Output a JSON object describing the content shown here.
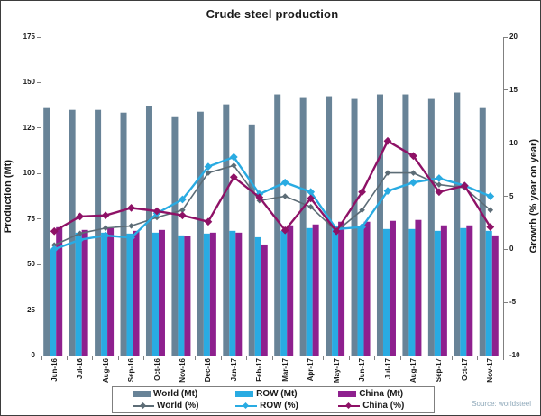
{
  "source": "Source: worldsteel",
  "chart_data": {
    "type": "bar+line combo",
    "title": "Crude steel production",
    "categories": [
      "Jun-16",
      "Jul-16",
      "Aug-16",
      "Sep-16",
      "Oct-16",
      "Nov-16",
      "Dec-16",
      "Jan-17",
      "Feb-17",
      "Mar-17",
      "Apr-17",
      "May-17",
      "Jun-17",
      "Jul-17",
      "Aug-17",
      "Sep-17",
      "Oct-17",
      "Nov-17"
    ],
    "left_axis": {
      "title": "Production (Mt)",
      "min": 0,
      "max": 175,
      "step": 25
    },
    "right_axis": {
      "title": "Growth (% year on year)",
      "min": -10,
      "max": 20,
      "step": 5
    },
    "grid": false,
    "legend_position": "bottom",
    "series": [
      {
        "name": "World (Mt)",
        "type": "bar",
        "axis": "left",
        "color": "#688397",
        "values": [
          136,
          135,
          135,
          133.5,
          137,
          131,
          134,
          138,
          127,
          143.5,
          141.5,
          142.5,
          141,
          143.5,
          143.5,
          141,
          144.5,
          136
        ]
      },
      {
        "name": "ROW (Mt)",
        "type": "bar",
        "axis": "left",
        "color": "#29abe2",
        "values": [
          58,
          67.5,
          67.5,
          67,
          67.5,
          66,
          67,
          68.5,
          65,
          68.5,
          70,
          70,
          70.5,
          69.5,
          69.5,
          68.5,
          70,
          68.5
        ]
      },
      {
        "name": "China (Mt)",
        "type": "bar",
        "axis": "left",
        "color": "#8e208e",
        "values": [
          70.5,
          69,
          70,
          68.5,
          69,
          65.5,
          67.5,
          67.5,
          61,
          71.5,
          72,
          73.5,
          73.5,
          74,
          74.5,
          71.5,
          71.5,
          66
        ]
      },
      {
        "name": "World (%)",
        "type": "line",
        "axis": "right",
        "color": "#5c6c76",
        "marker": "diamond",
        "values": [
          0.4,
          1.5,
          2.0,
          2.2,
          3.0,
          3.7,
          7.2,
          7.9,
          4.6,
          5.0,
          4.0,
          1.7,
          3.7,
          7.2,
          7.2,
          6.1,
          5.8,
          3.7
        ]
      },
      {
        "name": "ROW (%)",
        "type": "line",
        "axis": "right",
        "color": "#29abe2",
        "marker": "diamond",
        "values": [
          0.0,
          0.9,
          1.3,
          1.1,
          3.4,
          4.7,
          7.8,
          8.7,
          5.2,
          6.3,
          5.4,
          1.9,
          2.1,
          5.5,
          6.3,
          6.7,
          6.0,
          5.0
        ]
      },
      {
        "name": "China (%)",
        "type": "line",
        "axis": "right",
        "color": "#8e1166",
        "marker": "diamond",
        "values": [
          1.7,
          3.1,
          3.2,
          3.9,
          3.6,
          3.2,
          2.6,
          6.8,
          4.9,
          1.8,
          4.8,
          1.7,
          5.4,
          10.2,
          8.8,
          5.4,
          6.0,
          2.1
        ]
      }
    ]
  }
}
